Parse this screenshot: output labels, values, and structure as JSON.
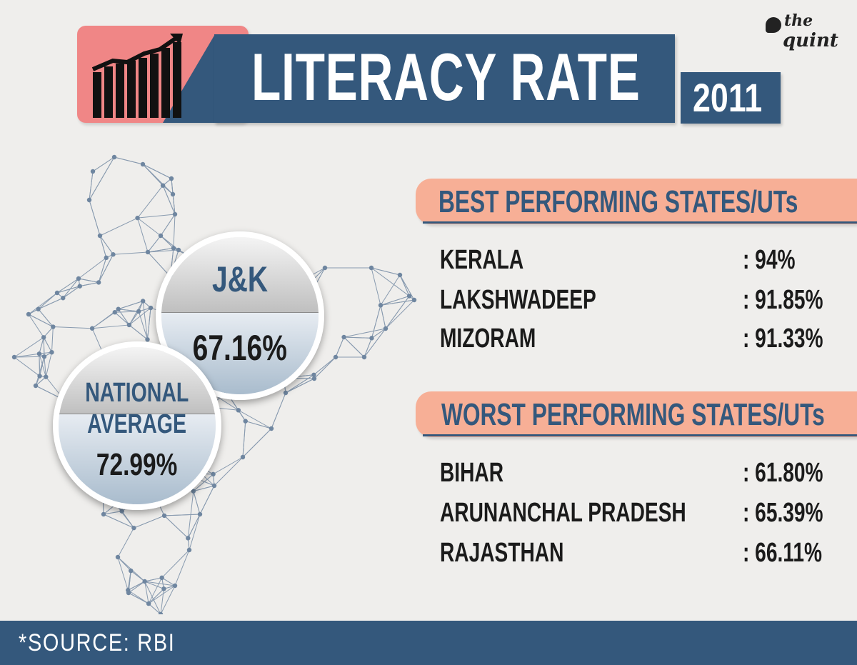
{
  "header": {
    "title": "LITERACY RATE",
    "year": "2011",
    "icon": "rising-chart-icon",
    "brand_line1": "the",
    "brand_line2": "quint"
  },
  "highlights": {
    "jk": {
      "label": "J&K",
      "value": "67.16%"
    },
    "national": {
      "label_line1": "NATIONAL",
      "label_line2": "AVERAGE",
      "value": "72.99%"
    }
  },
  "best": {
    "heading": "BEST PERFORMING STATES/UTs",
    "rows": [
      {
        "name": "KERALA",
        "value": ":   94%"
      },
      {
        "name": "LAKSHWADEEP",
        "value": ": 91.85%"
      },
      {
        "name": "MIZORAM",
        "value": ": 91.33%"
      }
    ]
  },
  "worst": {
    "heading": "WORST PERFORMING STATES/UTs",
    "rows": [
      {
        "name": "BIHAR",
        "value": ": 61.80%"
      },
      {
        "name": "ARUNANCHAL PRADESH",
        "value": ": 65.39%"
      },
      {
        "name": "RAJASTHAN",
        "value": ": 66.11%"
      }
    ]
  },
  "footer": {
    "source": "*SOURCE: RBI"
  },
  "colors": {
    "navy": "#34587c",
    "salmon": "#f7af96",
    "pink": "#f08686",
    "background": "#efeeec"
  }
}
